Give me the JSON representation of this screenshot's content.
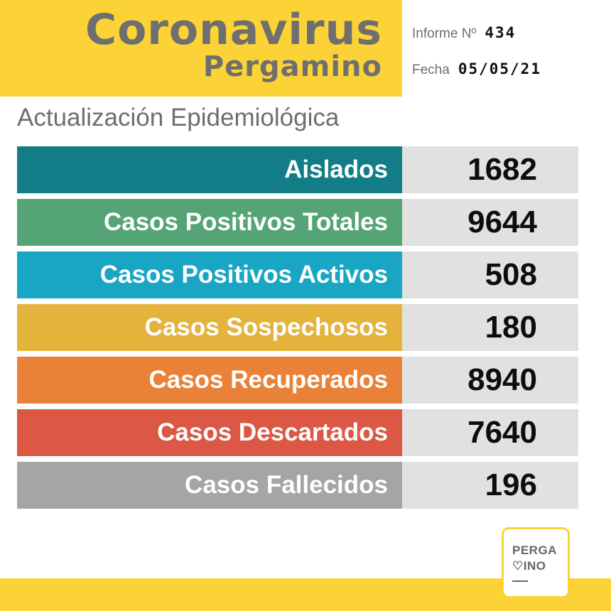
{
  "header": {
    "title": "Coronavirus",
    "subtitle": "Pergamino",
    "informe_label": "Informe Nº",
    "informe_value": "434",
    "fecha_label": "Fecha",
    "fecha_value": "05/05/21"
  },
  "section_title": "Actualización Epidemiológica",
  "rows": [
    {
      "label": "Aislados",
      "value": "1682",
      "color": "#127d86"
    },
    {
      "label": "Casos Positivos Totales",
      "value": "9644",
      "color": "#55a475"
    },
    {
      "label": "Casos Positivos Activos",
      "value": "508",
      "color": "#19a5c4"
    },
    {
      "label": "Casos Sospechosos",
      "value": "180",
      "color": "#e3b33c"
    },
    {
      "label": "Casos Recuperados",
      "value": "8940",
      "color": "#e98238"
    },
    {
      "label": "Casos Descartados",
      "value": "7640",
      "color": "#dc5844"
    },
    {
      "label": "Casos Fallecidos",
      "value": "196",
      "color": "#a5a5a5"
    }
  ],
  "logo": {
    "line1": "PERGA",
    "line2": "♡INO"
  },
  "colors": {
    "brand_yellow": "#fcd336",
    "value_bg": "#e1e1e1",
    "header_text": "#6f6f6f"
  }
}
